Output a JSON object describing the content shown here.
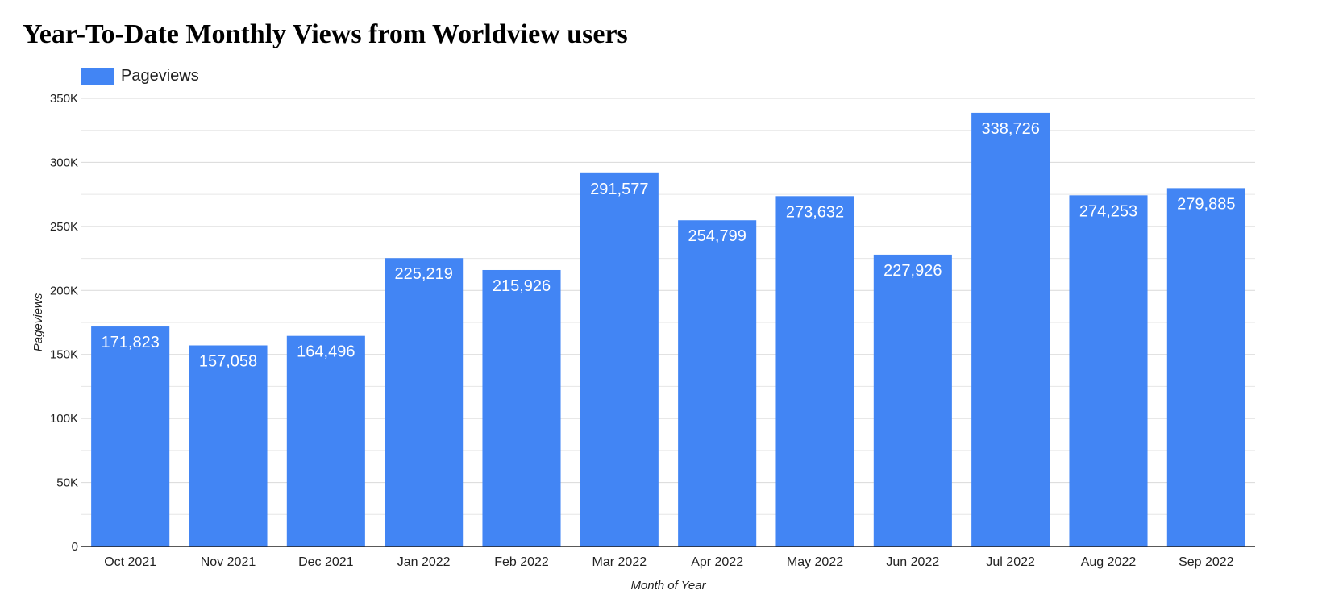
{
  "chart_data": {
    "type": "bar",
    "title": "Year-To-Date Monthly Views from Worldview users",
    "xlabel": "Month of Year",
    "ylabel": "Pageviews",
    "categories": [
      "Oct 2021",
      "Nov 2021",
      "Dec 2021",
      "Jan 2022",
      "Feb 2022",
      "Mar 2022",
      "Apr 2022",
      "May 2022",
      "Jun 2022",
      "Jul 2022",
      "Aug 2022",
      "Sep 2022"
    ],
    "series": [
      {
        "name": "Pageviews",
        "values": [
          171823,
          157058,
          164496,
          225219,
          215926,
          291577,
          254799,
          273632,
          227926,
          338726,
          274253,
          279885
        ],
        "value_labels": [
          "171,823",
          "157,058",
          "164,496",
          "225,219",
          "215,926",
          "291,577",
          "254,799",
          "273,632",
          "227,926",
          "338,726",
          "274,253",
          "279,885"
        ],
        "color": "#4285f4"
      }
    ],
    "ylim": [
      0,
      350000
    ],
    "y_ticks": [
      0,
      50000,
      100000,
      150000,
      200000,
      250000,
      300000,
      350000
    ],
    "y_tick_labels": [
      "0",
      "50K",
      "100K",
      "150K",
      "200K",
      "250K",
      "300K",
      "350K"
    ],
    "grid": true,
    "legend_position": "top-left"
  }
}
